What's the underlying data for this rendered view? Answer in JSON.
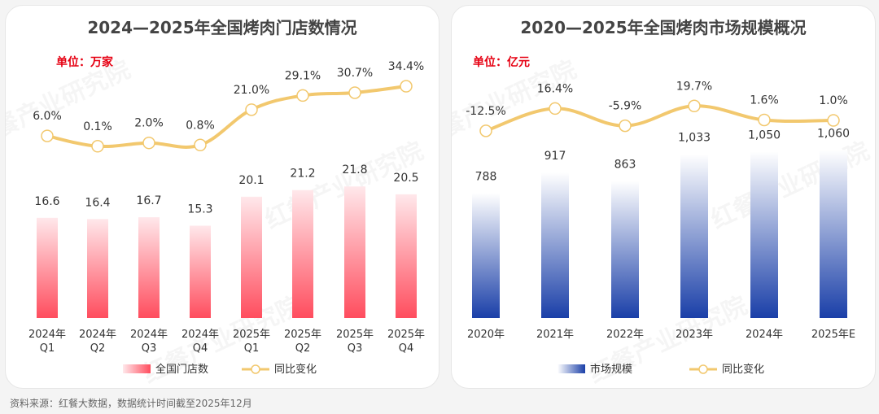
{
  "chart_data": [
    {
      "type": "bar+line",
      "title": "2024—2025年全国烤肉门店数情况",
      "unit": "单位：万家",
      "categories": [
        "2024年\nQ1",
        "2024年\nQ2",
        "2024年\nQ3",
        "2024年\nQ4",
        "2025年\nQ1",
        "2025年\nQ2",
        "2025年\nQ3",
        "2025年\nQ4"
      ],
      "bar_series": {
        "name": "全国门店数",
        "values": [
          16.6,
          16.4,
          16.7,
          15.3,
          20.1,
          21.2,
          21.8,
          20.5
        ],
        "labels": [
          "16.6",
          "16.4",
          "16.7",
          "15.3",
          "20.1",
          "21.2",
          "21.8",
          "20.5"
        ],
        "color": "#ff4d5e"
      },
      "line_series": {
        "name": "同比变化",
        "values": [
          6.0,
          0.1,
          2.0,
          0.8,
          21.0,
          29.1,
          30.7,
          34.4
        ],
        "labels": [
          "6.0%",
          "0.1%",
          "2.0%",
          "0.8%",
          "21.0%",
          "29.1%",
          "30.7%",
          "34.4%"
        ],
        "color": "#f2c86e"
      },
      "legend": "bottom"
    },
    {
      "type": "bar+line",
      "title": "2020—2025年全国烤肉市场规模概况",
      "unit": "单位：亿元",
      "categories": [
        "2020年",
        "2021年",
        "2022年",
        "2023年",
        "2024年",
        "2025年E"
      ],
      "bar_series": {
        "name": "市场规模",
        "values": [
          788,
          917,
          863,
          1033,
          1050,
          1060
        ],
        "labels": [
          "788",
          "917",
          "863",
          "1,033",
          "1,050",
          "1,060"
        ],
        "color": "#1a3fa8"
      },
      "line_series": {
        "name": "同比变化",
        "values": [
          -12.5,
          16.4,
          -5.9,
          19.7,
          1.6,
          1.0
        ],
        "labels": [
          "-12.5%",
          "16.4%",
          "-5.9%",
          "19.7%",
          "1.6%",
          "1.0%"
        ],
        "color": "#f2c86e"
      },
      "legend": "bottom"
    }
  ],
  "footer": "资料来源：红餐大数据，数据统计时间截至2025年12月",
  "watermark": "红餐产业研究院"
}
